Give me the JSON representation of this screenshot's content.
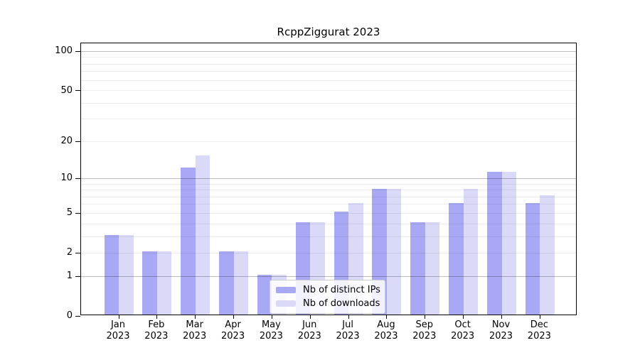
{
  "title": "RcppZiggurat 2023",
  "chart_data": {
    "type": "bar",
    "title": "RcppZiggurat 2023",
    "scale": "log1p",
    "categories": [
      "Jan",
      "Feb",
      "Mar",
      "Apr",
      "May",
      "Jun",
      "Jul",
      "Aug",
      "Sep",
      "Oct",
      "Nov",
      "Dec"
    ],
    "x_tick_year": "2023",
    "series": [
      {
        "name": "Nb of distinct IPs",
        "color": "#a8a8f5",
        "values": [
          3,
          2,
          12,
          2,
          1,
          4,
          5,
          8,
          4,
          6,
          11,
          6
        ]
      },
      {
        "name": "Nb of downloads",
        "color": "#dadaf8",
        "values": [
          3,
          2,
          15,
          2,
          1,
          4,
          6,
          8,
          4,
          8,
          11,
          7
        ]
      }
    ],
    "y_ticks": [
      0,
      1,
      2,
      5,
      10,
      20,
      50,
      100
    ],
    "major_gridlines": [
      1,
      10,
      100
    ],
    "minor_gridlines": [
      2,
      3,
      4,
      5,
      6,
      7,
      8,
      9,
      20,
      30,
      40,
      50,
      60,
      70,
      80,
      90
    ],
    "ylim": [
      0,
      116
    ],
    "grid": true,
    "legend_position": "bottom-center"
  },
  "colors": {
    "axis": "#000000",
    "major_grid": "rgba(0,0,0,0.26)",
    "minor_grid": "rgba(0,0,0,0.07)",
    "legend_background": "rgba(255,255,255,0.85)",
    "legend_border": "#cccccc"
  }
}
